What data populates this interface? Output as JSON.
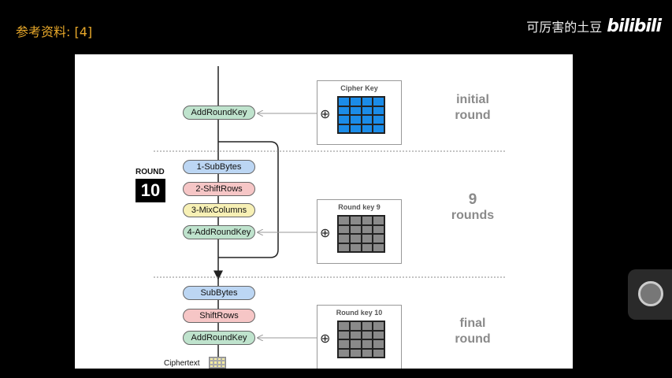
{
  "header": {
    "reference_label": "参考资料: [4]",
    "watermark_text": "可厉害的土豆",
    "watermark_logo": "bilibili"
  },
  "diagram": {
    "initial": {
      "step": "AddRoundKey",
      "key_title": "Cipher Key",
      "phase_line1": "initial",
      "phase_line2": "round"
    },
    "main": {
      "round_label": "ROUND",
      "round_count": "10",
      "steps": [
        "1-SubBytes",
        "2-ShiftRows",
        "3-MixColumns",
        "4-AddRoundKey"
      ],
      "key_title": "Round key 9",
      "phase_line1": "9",
      "phase_line2": "rounds"
    },
    "final": {
      "steps": [
        "SubBytes",
        "ShiftRows",
        "AddRoundKey"
      ],
      "key_title": "Round key 10",
      "phase_line1": "final",
      "phase_line2": "round"
    },
    "output_label": "Ciphertext",
    "oplus_symbol": "⊕"
  },
  "colors": {
    "cipher_key_grid": "#1b8ce8",
    "round_key_grid": "#8a8a8a",
    "add_round_key": "#bfe3cd",
    "sub_bytes": "#bcd6f3",
    "shift_rows": "#f6c6c6",
    "mix_columns": "#f7f0b5"
  }
}
